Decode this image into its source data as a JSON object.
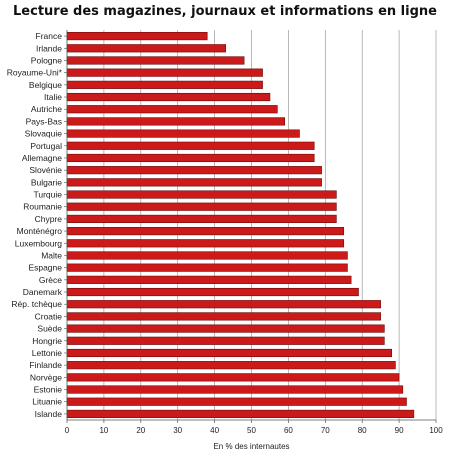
{
  "chart_data": {
    "type": "bar",
    "orientation": "horizontal",
    "title": "Lecture des magazines, journaux et informations en ligne",
    "xlabel": "En % des internautes",
    "ylabel": "",
    "xlim": [
      0,
      100
    ],
    "xticks": [
      0,
      10,
      20,
      30,
      40,
      50,
      60,
      70,
      80,
      90,
      100
    ],
    "grid": true,
    "bar_color": "#cc1a1a",
    "bar_edge_color": "#6e0a0a",
    "categories": [
      "France",
      "Irlande",
      "Pologne",
      "Royaume-Uni*",
      "Belgique",
      "Italie",
      "Autriche",
      "Pays-Bas",
      "Slovaquie",
      "Portugal",
      "Allemagne",
      "Slovénie",
      "Bulgarie",
      "Turquie",
      "Roumanie",
      "Chypre",
      "Monténégro",
      "Luxembourg",
      "Malte",
      "Espagne",
      "Grèce",
      "Danemark",
      "Rép. tchèque",
      "Croatie",
      "Suède",
      "Hongrie",
      "Lettonie",
      "Finlande",
      "Norvège",
      "Estonie",
      "Lituanie",
      "Islande"
    ],
    "values": [
      38,
      43,
      48,
      53,
      53,
      55,
      57,
      59,
      63,
      67,
      67,
      69,
      69,
      73,
      73,
      73,
      75,
      75,
      76,
      76,
      77,
      79,
      85,
      85,
      86,
      86,
      88,
      89,
      90,
      91,
      92,
      94
    ]
  }
}
